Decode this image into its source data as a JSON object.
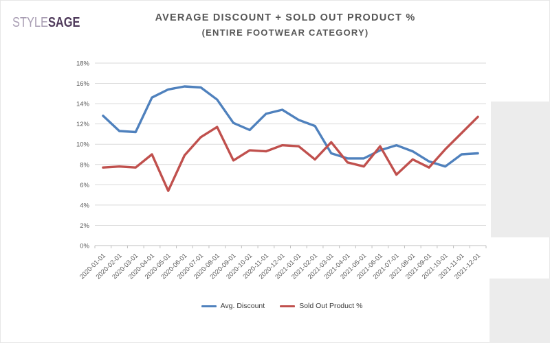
{
  "logo": {
    "style": "STYLE",
    "sage": "SAGE"
  },
  "title": {
    "line1": "AVERAGE DISCOUNT + SOLD OUT PRODUCT %",
    "line2": "(ENTIRE FOOTWEAR CATEGORY)"
  },
  "colors": {
    "avg_discount_line": "#4f81bd",
    "sold_out_line": "#c0504d",
    "gridline": "#d9d9d9",
    "axis_line": "#bfbfbf",
    "tick_text": "#595959",
    "title_text": "#575757",
    "logo_style": "#a89db3",
    "logo_sage": "#4f3a5b",
    "background_panel": "#ececec"
  },
  "chart_data": {
    "type": "line",
    "title": "AVERAGE DISCOUNT + SOLD OUT PRODUCT % (ENTIRE FOOTWEAR CATEGORY)",
    "xlabel": "",
    "ylabel": "",
    "ylim": [
      0,
      18
    ],
    "y_tick_step": 2,
    "y_tick_labels": [
      "0%",
      "2%",
      "4%",
      "6%",
      "8%",
      "10%",
      "12%",
      "14%",
      "16%",
      "18%"
    ],
    "grid": true,
    "legend_position": "bottom",
    "categories": [
      "2020-01-01",
      "2020-02-01",
      "2020-03-01",
      "2020-04-01",
      "2020-05-01",
      "2020-06-01",
      "2020-07-01",
      "2020-08-01",
      "2020-09-01",
      "2020-10-01",
      "2020-11-01",
      "2020-12-01",
      "2021-01-01",
      "2021-02-01",
      "2021-03-01",
      "2021-04-01",
      "2021-05-01",
      "2021-06-01",
      "2021-07-01",
      "2021-08-01",
      "2021-09-01",
      "2021-10-01",
      "2021-11-01",
      "2021-12-01"
    ],
    "series": [
      {
        "name": "Avg. Discount",
        "color": "#4f81bd",
        "values": [
          12.8,
          11.3,
          11.2,
          14.6,
          15.4,
          15.7,
          15.6,
          14.4,
          12.1,
          11.4,
          13.0,
          13.4,
          12.4,
          11.8,
          9.1,
          8.6,
          8.6,
          9.4,
          9.9,
          9.3,
          8.3,
          7.8,
          9.0,
          9.1
        ]
      },
      {
        "name": "Sold Out Product %",
        "color": "#c0504d",
        "values": [
          7.7,
          7.8,
          7.7,
          9.0,
          5.4,
          8.9,
          10.7,
          11.7,
          8.4,
          9.4,
          9.3,
          9.9,
          9.8,
          8.5,
          10.2,
          8.2,
          7.8,
          9.8,
          7.0,
          8.5,
          7.7,
          9.5,
          11.1,
          12.7
        ]
      }
    ]
  }
}
